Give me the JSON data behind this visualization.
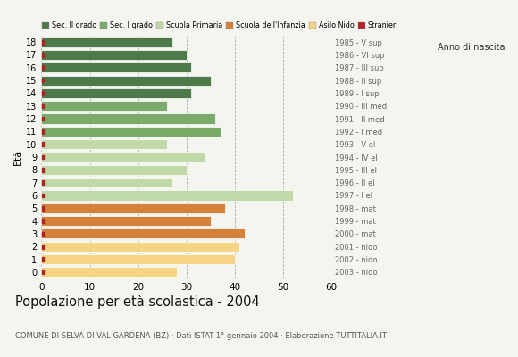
{
  "ages": [
    18,
    17,
    16,
    15,
    14,
    13,
    12,
    11,
    10,
    9,
    8,
    7,
    6,
    5,
    4,
    3,
    2,
    1,
    0
  ],
  "years": [
    "1985 - V sup",
    "1986 - VI sup",
    "1987 - III sup",
    "1988 - II sup",
    "1989 - I sup",
    "1990 - III med",
    "1991 - II med",
    "1992 - I med",
    "1993 - V el",
    "1994 - IV el",
    "1995 - III el",
    "1996 - II el",
    "1997 - I el",
    "1998 - mat",
    "1999 - mat",
    "2000 - mat",
    "2001 - nido",
    "2002 - nido",
    "2003 - nido"
  ],
  "values": [
    27,
    30,
    31,
    35,
    31,
    26,
    36,
    37,
    26,
    34,
    30,
    27,
    52,
    38,
    35,
    42,
    41,
    40,
    28
  ],
  "stranieri": [
    1,
    1,
    1,
    2,
    2,
    1,
    1,
    2,
    1,
    1,
    1,
    1,
    2,
    2,
    2,
    2,
    1,
    2,
    1
  ],
  "categories": {
    "Sec. II grado": {
      "ages": [
        14,
        15,
        16,
        17,
        18
      ],
      "color": "#4e7a4a"
    },
    "Sec. I grado": {
      "ages": [
        11,
        12,
        13
      ],
      "color": "#7aab69"
    },
    "Scuola Primaria": {
      "ages": [
        6,
        7,
        8,
        9,
        10
      ],
      "color": "#c0d9a8"
    },
    "Scuola dell'Infanzia": {
      "ages": [
        3,
        4,
        5
      ],
      "color": "#d4823a"
    },
    "Asilo Nido": {
      "ages": [
        0,
        1,
        2
      ],
      "color": "#f5d585"
    }
  },
  "stranieri_color": "#b22222",
  "title": "Popolazione per età scolastica - 2004",
  "subtitle": "COMUNE DI SELVA DI VAL GARDENA (BZ) · Dati ISTAT 1° gennaio 2004 · Elaborazione TUTTITALIA.IT",
  "ylabel": "Età",
  "right_label": "Anno di nascita",
  "xlim": [
    0,
    60
  ],
  "background_color": "#f5f5f0",
  "legend_labels": [
    "Sec. II grado",
    "Sec. I grado",
    "Scuola Primaria",
    "Scuola dell'Infanzia",
    "Asilo Nido",
    "Stranieri"
  ],
  "legend_colors": [
    "#4e7a4a",
    "#7aab69",
    "#c0d9a8",
    "#d4823a",
    "#f5d585",
    "#b22222"
  ]
}
